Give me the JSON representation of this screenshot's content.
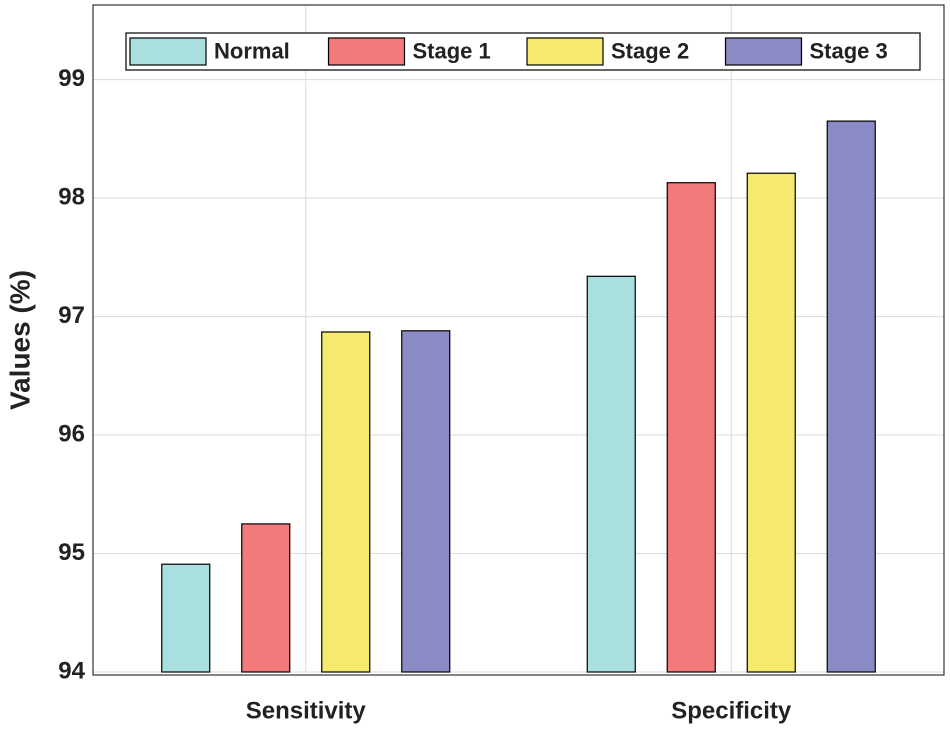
{
  "chart_data": {
    "type": "bar",
    "y_label": "Values (%)",
    "categories": [
      "Sensitivity",
      "Specificity"
    ],
    "series": [
      {
        "name": "Normal",
        "color": "#aadfdf",
        "values": [
          94.91,
          97.34
        ]
      },
      {
        "name": "Stage 1",
        "color": "#f27a7a",
        "values": [
          95.25,
          98.13
        ]
      },
      {
        "name": "Stage 2",
        "color": "#f5ea6e",
        "values": [
          96.87,
          98.21
        ]
      },
      {
        "name": "Stage 3",
        "color": "#8a8ac4",
        "values": [
          96.88,
          98.65
        ]
      }
    ],
    "ylim": [
      94,
      99.63
    ],
    "yticks": [
      94,
      95,
      96,
      97,
      98,
      99
    ],
    "grid": true,
    "legend": "top"
  }
}
